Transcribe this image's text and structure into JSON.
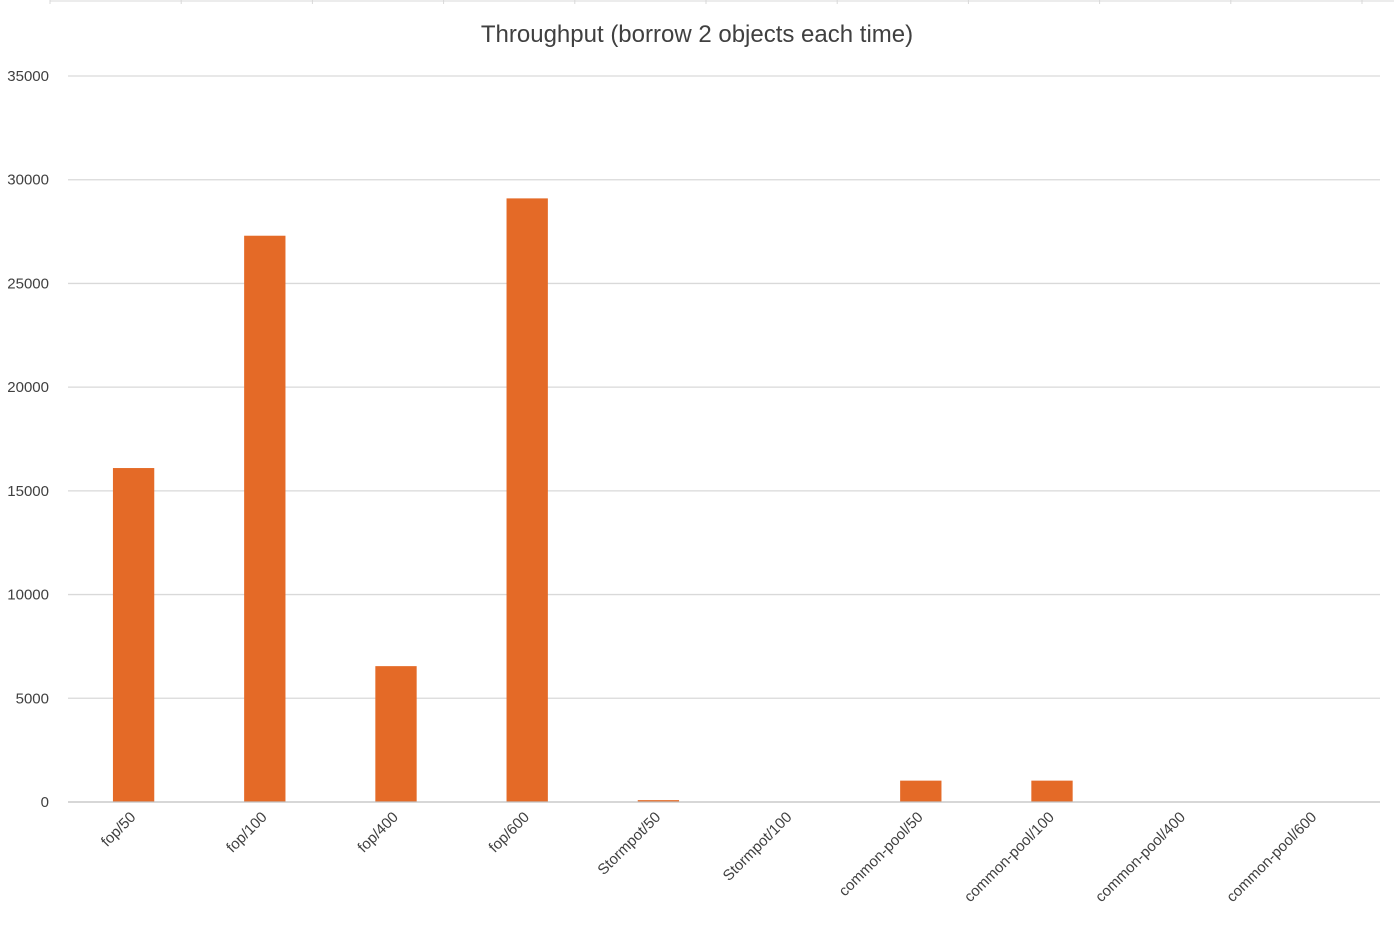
{
  "chart_data": {
    "type": "bar",
    "title": "Throughput (borrow 2 objects each time)",
    "xlabel": "",
    "ylabel": "",
    "categories": [
      "fop/50",
      "fop/100",
      "fop/400",
      "fop/600",
      "Stormpot/50",
      "Stormpot/100",
      "common-pool/50",
      "common-pool/100",
      "common-pool/400",
      "common-pool/600"
    ],
    "values": [
      16100,
      27300,
      6550,
      29100,
      90,
      0,
      1030,
      1030,
      0,
      0
    ],
    "ylim": [
      0,
      35000
    ],
    "yticks": [
      "0",
      "5000",
      "10000",
      "15000",
      "20000",
      "25000",
      "30000",
      "35000"
    ],
    "grid": true,
    "legend": "none",
    "colors": {
      "bar": "#e46a27",
      "gridline": "#d9d9d9",
      "axis": "#bfbfbf",
      "text": "#404040"
    }
  }
}
